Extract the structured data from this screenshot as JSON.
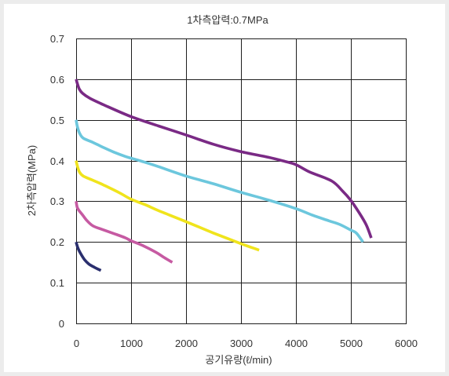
{
  "chart_data": {
    "type": "line",
    "title": "1차측압력:0.7MPa",
    "xlabel": "공기유량(ℓ/min)",
    "ylabel": "2차측압력(MPa)",
    "xlim": [
      0,
      6000
    ],
    "ylim": [
      0,
      0.7
    ],
    "xticks": [
      "0",
      "1000",
      "2000",
      "3000",
      "4000",
      "5000",
      "6000"
    ],
    "yticks": [
      "0",
      "0.1",
      "0.2",
      "0.3",
      "0.4",
      "0.5",
      "0.6",
      "0.7"
    ],
    "grid": true,
    "series": [
      {
        "color": "#7a2a85",
        "x": [
          0,
          20,
          60,
          120,
          250,
          500,
          1000,
          1500,
          2000,
          2500,
          3000,
          3500,
          3800,
          4000,
          4250,
          4650,
          4850,
          5000,
          5150,
          5280,
          5370
        ],
        "y": [
          0.6,
          0.59,
          0.575,
          0.565,
          0.553,
          0.537,
          0.508,
          0.485,
          0.463,
          0.44,
          0.422,
          0.408,
          0.398,
          0.39,
          0.372,
          0.35,
          0.325,
          0.302,
          0.272,
          0.242,
          0.21
        ]
      },
      {
        "color": "#6cc7dd",
        "x": [
          0,
          20,
          60,
          130,
          300,
          500,
          700,
          900,
          1000,
          1200,
          1500,
          2000,
          2500,
          3000,
          3500,
          4000,
          4300,
          4600,
          4800,
          5000,
          5100,
          5220
        ],
        "y": [
          0.5,
          0.485,
          0.468,
          0.455,
          0.445,
          0.432,
          0.42,
          0.41,
          0.406,
          0.398,
          0.385,
          0.362,
          0.343,
          0.322,
          0.303,
          0.282,
          0.266,
          0.252,
          0.243,
          0.229,
          0.222,
          0.2
        ]
      },
      {
        "color": "#f0e41c",
        "x": [
          0,
          20,
          60,
          130,
          300,
          500,
          800,
          1000,
          1250,
          1500,
          2000,
          2500,
          3000,
          3330
        ],
        "y": [
          0.4,
          0.388,
          0.372,
          0.362,
          0.352,
          0.34,
          0.32,
          0.305,
          0.292,
          0.277,
          0.25,
          0.222,
          0.196,
          0.18
        ]
      },
      {
        "color": "#c65aa2",
        "x": [
          0,
          20,
          60,
          120,
          200,
          300,
          450,
          700,
          900,
          1000,
          1200,
          1450,
          1600,
          1750
        ],
        "y": [
          0.3,
          0.285,
          0.276,
          0.266,
          0.252,
          0.24,
          0.232,
          0.22,
          0.21,
          0.203,
          0.192,
          0.175,
          0.162,
          0.15
        ]
      },
      {
        "color": "#2a2f6e",
        "x": [
          0,
          30,
          80,
          150,
          230,
          330,
          450
        ],
        "y": [
          0.2,
          0.186,
          0.172,
          0.157,
          0.146,
          0.138,
          0.13
        ]
      }
    ]
  }
}
